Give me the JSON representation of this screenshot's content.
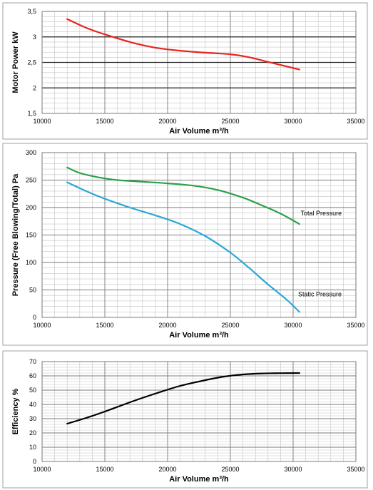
{
  "chart_data": [
    {
      "type": "line",
      "xlabel": "Air Volume  m³/h",
      "ylabel": "Motor Power  kW",
      "xlim": [
        10000,
        35000
      ],
      "ylim": [
        1.5,
        3.5
      ],
      "x_ticks": [
        10000,
        15000,
        20000,
        25000,
        30000,
        35000
      ],
      "y_ticks": [
        1.5,
        2,
        2.5,
        3,
        3.5
      ],
      "y_tick_labels": [
        "1,5",
        "2",
        "2,5",
        "3",
        "3,5"
      ],
      "grid": true,
      "series": [
        {
          "color": "#e8241c",
          "x": [
            12000,
            13500,
            15000,
            17000,
            19000,
            21000,
            23000,
            25000,
            26500,
            28000,
            29500,
            30500
          ],
          "y": [
            3.35,
            3.18,
            3.05,
            2.9,
            2.79,
            2.73,
            2.69,
            2.66,
            2.6,
            2.51,
            2.42,
            2.36
          ]
        }
      ],
      "annotations": []
    },
    {
      "type": "line",
      "xlabel": "Air Volume  m³/h",
      "ylabel": "Pressure (Free Blowing/Total)  Pa",
      "xlim": [
        10000,
        35000
      ],
      "ylim": [
        0,
        300
      ],
      "x_ticks": [
        10000,
        15000,
        20000,
        25000,
        30000,
        35000
      ],
      "y_ticks": [
        0,
        50,
        100,
        150,
        200,
        250,
        300
      ],
      "y_tick_labels": [
        "0",
        "50",
        "100",
        "150",
        "200",
        "250",
        "300"
      ],
      "grid": true,
      "series": [
        {
          "color": "#2ba04a",
          "x": [
            12000,
            13000,
            14500,
            16000,
            18000,
            20000,
            22000,
            24000,
            26000,
            27500,
            29000,
            30500
          ],
          "y": [
            273,
            263,
            255,
            250,
            247,
            244,
            240,
            232,
            218,
            204,
            189,
            170
          ]
        },
        {
          "color": "#2aa8d8",
          "x": [
            12000,
            13500,
            15000,
            17000,
            19000,
            21000,
            23000,
            25000,
            26500,
            28000,
            29500,
            30500
          ],
          "y": [
            246,
            230,
            216,
            200,
            186,
            170,
            148,
            118,
            90,
            60,
            32,
            10
          ]
        }
      ],
      "annotations": [
        {
          "text": "Total Pressure",
          "x": 30600,
          "y": 186
        },
        {
          "text": "Static Pressure",
          "x": 30400,
          "y": 38
        }
      ]
    },
    {
      "type": "line",
      "xlabel": "Air Volume  m³/h",
      "ylabel": "Efficiency  %",
      "xlim": [
        10000,
        35000
      ],
      "ylim": [
        0,
        70
      ],
      "x_ticks": [
        10000,
        15000,
        20000,
        25000,
        30000,
        35000
      ],
      "y_ticks": [
        0,
        10,
        20,
        30,
        40,
        50,
        60,
        70
      ],
      "y_tick_labels": [
        "0",
        "10",
        "20",
        "30",
        "40",
        "50",
        "60",
        "70"
      ],
      "grid": true,
      "series": [
        {
          "color": "#000000",
          "x": [
            12000,
            13500,
            15000,
            17000,
            19000,
            21000,
            23000,
            24500,
            26000,
            27500,
            29000,
            30500
          ],
          "y": [
            26.5,
            30.5,
            35,
            41.5,
            47.5,
            53,
            57,
            59.5,
            61,
            61.7,
            61.9,
            62
          ]
        }
      ],
      "annotations": []
    }
  ]
}
